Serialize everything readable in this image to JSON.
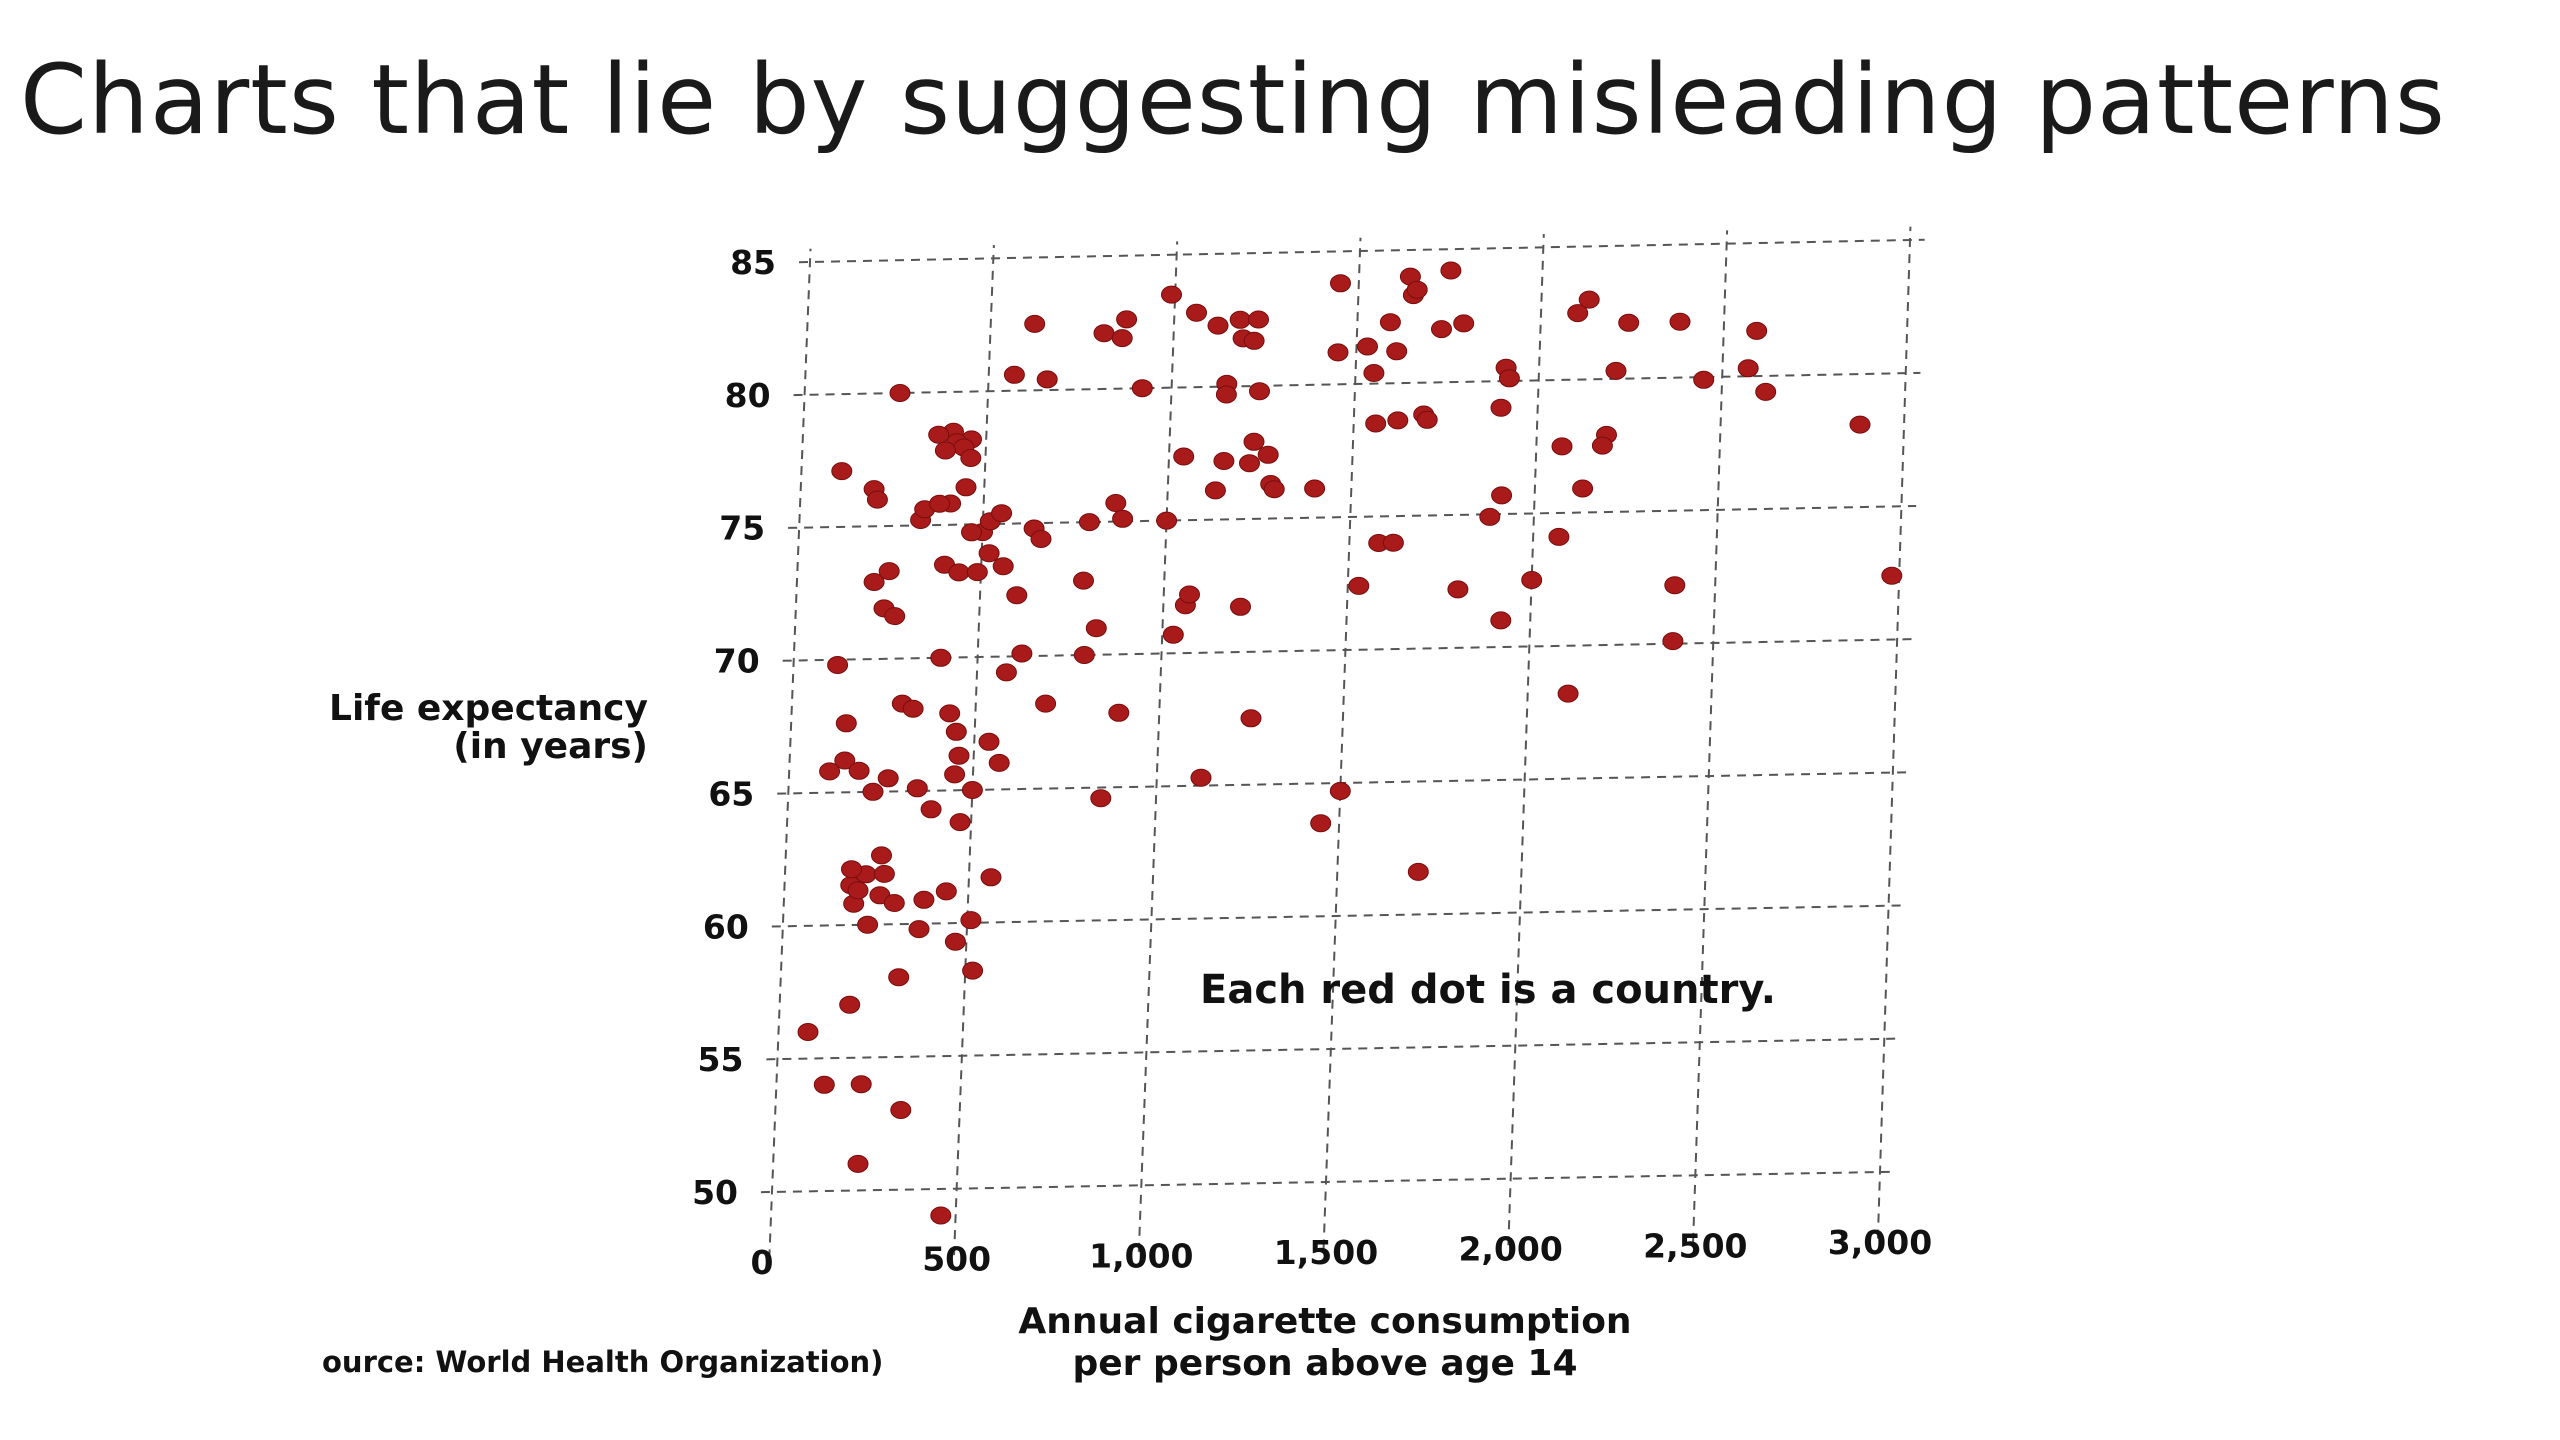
{
  "slide": {
    "title": "Charts that lie by suggesting misleading patterns"
  },
  "chart_data": {
    "type": "scatter",
    "title": "",
    "xlabel": [
      "Annual cigarette consumption",
      "per person above age 14"
    ],
    "ylabel": [
      "Life expectancy",
      "(in years)"
    ],
    "xlim": [
      0,
      3000
    ],
    "ylim": [
      50,
      85
    ],
    "x_ticks": [
      0,
      500,
      1000,
      1500,
      2000,
      2500,
      3000
    ],
    "x_tick_labels": [
      "0",
      "500",
      "1,000",
      "1,500",
      "2,000",
      "2,500",
      "3,000"
    ],
    "y_ticks": [
      50,
      55,
      60,
      65,
      70,
      75,
      80,
      85
    ],
    "y_tick_labels": [
      "50",
      "55",
      "60",
      "65",
      "70",
      "75",
      "80",
      "85"
    ],
    "grid": true,
    "marker_color": "#a91b1b",
    "annotation": "Each red dot is a country.",
    "source": "ource: World Health Organization)",
    "points": [
      [
        80,
        56
      ],
      [
        130,
        54
      ],
      [
        230,
        54
      ],
      [
        340,
        53
      ],
      [
        230,
        51
      ],
      [
        460,
        49
      ],
      [
        190,
        57
      ],
      [
        520,
        58.2
      ],
      [
        320,
        58
      ],
      [
        470,
        59.3
      ],
      [
        510,
        60.1
      ],
      [
        370,
        59.8
      ],
      [
        230,
        60
      ],
      [
        260,
        61.1
      ],
      [
        300,
        60.8
      ],
      [
        380,
        60.9
      ],
      [
        440,
        61.2
      ],
      [
        560,
        61.7
      ],
      [
        180,
        61.5
      ],
      [
        220,
        61.9
      ],
      [
        260,
        62.6
      ],
      [
        270,
        61.9
      ],
      [
        180,
        62.1
      ],
      [
        190,
        60.8
      ],
      [
        200,
        61.3
      ],
      [
        390,
        64.3
      ],
      [
        470,
        63.8
      ],
      [
        230,
        65
      ],
      [
        350,
        65.1
      ],
      [
        450,
        65.6
      ],
      [
        460,
        66.3
      ],
      [
        500,
        65
      ],
      [
        570,
        66
      ],
      [
        540,
        66.8
      ],
      [
        110,
        65.8
      ],
      [
        150,
        66.2
      ],
      [
        190,
        65.8
      ],
      [
        270,
        65.5
      ],
      [
        150,
        67.6
      ],
      [
        300,
        68.3
      ],
      [
        330,
        68.1
      ],
      [
        430,
        67.9
      ],
      [
        450,
        67.2
      ],
      [
        400,
        70
      ],
      [
        120,
        69.8
      ],
      [
        240,
        71.9
      ],
      [
        270,
        71.6
      ],
      [
        210,
        72.9
      ],
      [
        250,
        73.3
      ],
      [
        600,
        72.3
      ],
      [
        400,
        73.5
      ],
      [
        440,
        73.2
      ],
      [
        490,
        73.2
      ],
      [
        520,
        73.9
      ],
      [
        560,
        73.4
      ],
      [
        580,
        69.4
      ],
      [
        620,
        70.1
      ],
      [
        690,
        68.2
      ],
      [
        850,
        64.6
      ],
      [
        890,
        67.8
      ],
      [
        1120,
        65.3
      ],
      [
        1250,
        67.5
      ],
      [
        1450,
        63.5
      ],
      [
        1500,
        64.7
      ],
      [
        1720,
        61.6
      ],
      [
        790,
        70
      ],
      [
        820,
        71
      ],
      [
        1030,
        70.7
      ],
      [
        1060,
        71.8
      ],
      [
        1070,
        72.2
      ],
      [
        1210,
        71.7
      ],
      [
        780,
        72.8
      ],
      [
        790,
        75
      ],
      [
        880,
        75.1
      ],
      [
        860,
        75.7
      ],
      [
        1000,
        75
      ],
      [
        1130,
        76.1
      ],
      [
        1150,
        77.2
      ],
      [
        1220,
        77.1
      ],
      [
        1280,
        76.3
      ],
      [
        1290,
        76.1
      ],
      [
        1400,
        76.1
      ],
      [
        1580,
        74
      ],
      [
        1620,
        74
      ],
      [
        1530,
        72.4
      ],
      [
        1800,
        72.2
      ],
      [
        1880,
        74.9
      ],
      [
        1910,
        75.7
      ],
      [
        1920,
        71
      ],
      [
        2000,
        72.5
      ],
      [
        2070,
        74.1
      ],
      [
        2110,
        68.2
      ],
      [
        2130,
        75.9
      ],
      [
        2390,
        72.2
      ],
      [
        2390,
        70.1
      ],
      [
        2980,
        72.4
      ],
      [
        2880,
        78.1
      ],
      [
        2620,
        79.4
      ],
      [
        2570,
        80.3
      ],
      [
        2450,
        79.9
      ],
      [
        2590,
        81.7
      ],
      [
        2210,
        80.3
      ],
      [
        2240,
        82.1
      ],
      [
        2380,
        82.1
      ],
      [
        2100,
        82.5
      ],
      [
        2130,
        83
      ],
      [
        2190,
        77.9
      ],
      [
        2180,
        77.5
      ],
      [
        2070,
        77.5
      ],
      [
        1900,
        79
      ],
      [
        1910,
        80.5
      ],
      [
        1920,
        80.1
      ],
      [
        1730,
        82
      ],
      [
        1790,
        82.2
      ],
      [
        1690,
        78.8
      ],
      [
        1700,
        78.6
      ],
      [
        1620,
        78.6
      ],
      [
        1560,
        78.5
      ],
      [
        1550,
        80.4
      ],
      [
        1530,
        81.4
      ],
      [
        1590,
        82.3
      ],
      [
        1610,
        81.2
      ],
      [
        1640,
        84
      ],
      [
        1650,
        83.3
      ],
      [
        1660,
        83.5
      ],
      [
        1750,
        84.2
      ],
      [
        1450,
        83.8
      ],
      [
        1450,
        81.2
      ],
      [
        1120,
        82.3
      ],
      [
        1180,
        82.5
      ],
      [
        1190,
        81.8
      ],
      [
        1220,
        81.7
      ],
      [
        1230,
        82.5
      ],
      [
        1240,
        79.8
      ],
      [
        1150,
        80.1
      ],
      [
        1150,
        79.7
      ],
      [
        990,
        83.5
      ],
      [
        1060,
        82.8
      ],
      [
        1040,
        77.4
      ],
      [
        1230,
        77.9
      ],
      [
        1270,
        77.4
      ],
      [
        620,
        82.5
      ],
      [
        810,
        82.1
      ],
      [
        870,
        82.6
      ],
      [
        860,
        81.9
      ],
      [
        920,
        80
      ],
      [
        660,
        80.4
      ],
      [
        570,
        80.6
      ],
      [
        260,
        80
      ],
      [
        460,
        78.2
      ],
      [
        410,
        78.5
      ],
      [
        420,
        78.1
      ],
      [
        440,
        77.9
      ],
      [
        460,
        77.5
      ],
      [
        370,
        78.4
      ],
      [
        390,
        77.8
      ],
      [
        110,
        77.1
      ],
      [
        200,
        76.4
      ],
      [
        210,
        76
      ],
      [
        330,
        75.2
      ],
      [
        410,
        75.8
      ],
      [
        450,
        76.4
      ],
      [
        500,
        74.7
      ],
      [
        520,
        75.1
      ],
      [
        470,
        74.7
      ],
      [
        550,
        75.4
      ],
      [
        640,
        74.8
      ],
      [
        660,
        74.4
      ],
      [
        340,
        75.6
      ],
      [
        380,
        75.8
      ]
    ]
  }
}
